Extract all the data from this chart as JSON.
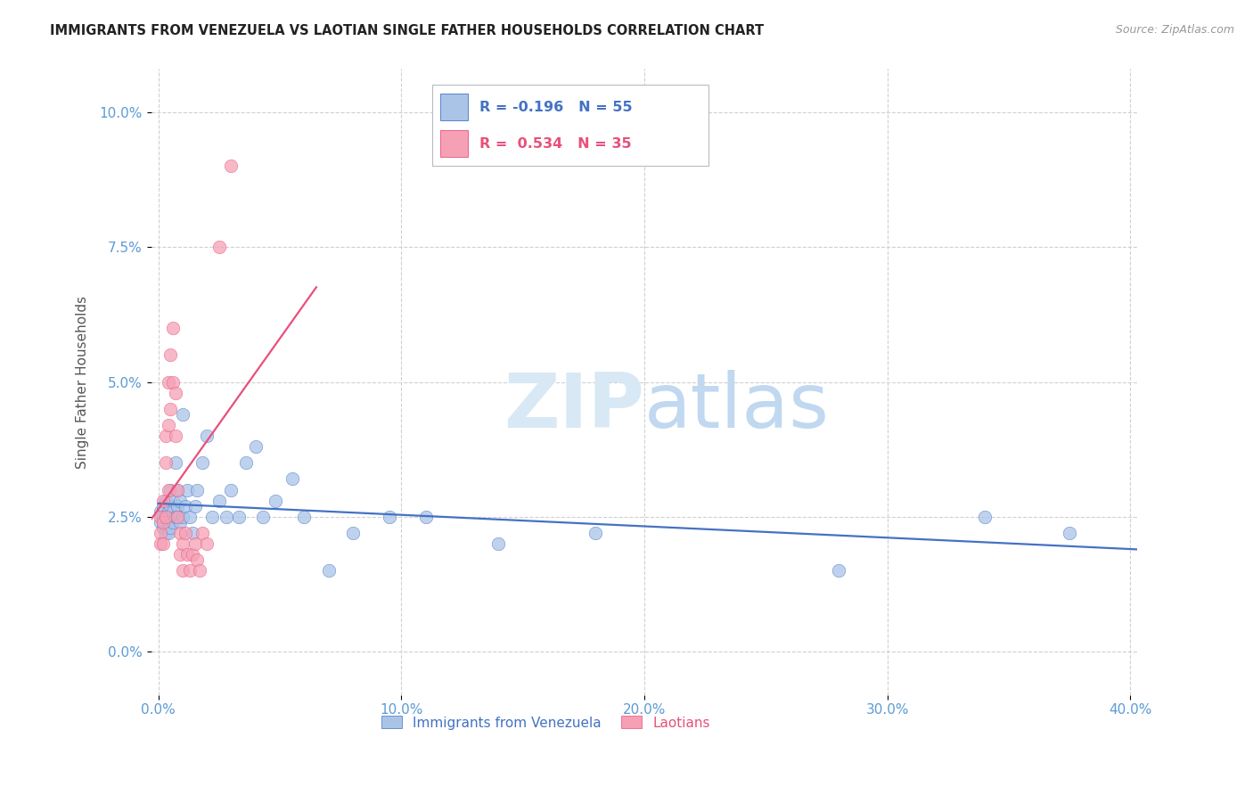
{
  "title": "IMMIGRANTS FROM VENEZUELA VS LAOTIAN SINGLE FATHER HOUSEHOLDS CORRELATION CHART",
  "source": "Source: ZipAtlas.com",
  "xlabel_vals": [
    0.0,
    0.1,
    0.2,
    0.3,
    0.4
  ],
  "ylabel_vals": [
    0.0,
    0.025,
    0.05,
    0.075,
    0.1
  ],
  "xlim": [
    -0.003,
    0.403
  ],
  "ylim": [
    -0.008,
    0.108
  ],
  "blue_R": -0.196,
  "blue_N": 55,
  "pink_R": 0.534,
  "pink_N": 35,
  "blue_color": "#aac4e8",
  "pink_color": "#f5a0b5",
  "blue_line_color": "#4472c4",
  "pink_line_color": "#e8507a",
  "legend_blue_text_color": "#4472c4",
  "legend_pink_text_color": "#e8507a",
  "title_color": "#222222",
  "source_color": "#999999",
  "axis_label_color": "#555555",
  "tick_label_color": "#5b9bd5",
  "watermark_zip_color": "#d8e8f5",
  "watermark_atlas_color": "#c0d8f0",
  "ylabel": "Single Father Households",
  "blue_scatter_x": [
    0.001,
    0.001,
    0.002,
    0.002,
    0.002,
    0.003,
    0.003,
    0.003,
    0.004,
    0.004,
    0.004,
    0.005,
    0.005,
    0.005,
    0.005,
    0.006,
    0.006,
    0.006,
    0.007,
    0.007,
    0.008,
    0.008,
    0.008,
    0.009,
    0.009,
    0.01,
    0.01,
    0.011,
    0.012,
    0.013,
    0.014,
    0.015,
    0.016,
    0.018,
    0.02,
    0.022,
    0.025,
    0.028,
    0.03,
    0.033,
    0.036,
    0.04,
    0.043,
    0.048,
    0.055,
    0.06,
    0.07,
    0.08,
    0.095,
    0.11,
    0.14,
    0.18,
    0.28,
    0.34,
    0.375
  ],
  "blue_scatter_y": [
    0.026,
    0.024,
    0.027,
    0.025,
    0.023,
    0.028,
    0.025,
    0.022,
    0.026,
    0.024,
    0.022,
    0.03,
    0.027,
    0.025,
    0.023,
    0.028,
    0.026,
    0.024,
    0.035,
    0.025,
    0.03,
    0.027,
    0.025,
    0.028,
    0.024,
    0.044,
    0.025,
    0.027,
    0.03,
    0.025,
    0.022,
    0.027,
    0.03,
    0.035,
    0.04,
    0.025,
    0.028,
    0.025,
    0.03,
    0.025,
    0.035,
    0.038,
    0.025,
    0.028,
    0.032,
    0.025,
    0.015,
    0.022,
    0.025,
    0.025,
    0.02,
    0.022,
    0.015,
    0.025,
    0.022
  ],
  "pink_scatter_x": [
    0.001,
    0.001,
    0.001,
    0.002,
    0.002,
    0.002,
    0.003,
    0.003,
    0.003,
    0.004,
    0.004,
    0.004,
    0.005,
    0.005,
    0.006,
    0.006,
    0.007,
    0.007,
    0.008,
    0.008,
    0.009,
    0.009,
    0.01,
    0.01,
    0.011,
    0.012,
    0.013,
    0.014,
    0.015,
    0.016,
    0.017,
    0.018,
    0.02,
    0.025,
    0.03
  ],
  "pink_scatter_y": [
    0.025,
    0.022,
    0.02,
    0.028,
    0.024,
    0.02,
    0.04,
    0.035,
    0.025,
    0.05,
    0.042,
    0.03,
    0.055,
    0.045,
    0.06,
    0.05,
    0.048,
    0.04,
    0.03,
    0.025,
    0.022,
    0.018,
    0.02,
    0.015,
    0.022,
    0.018,
    0.015,
    0.018,
    0.02,
    0.017,
    0.015,
    0.022,
    0.02,
    0.075,
    0.09
  ],
  "pink_line_xrange": [
    -0.01,
    0.065
  ],
  "blue_line_xrange": [
    0.0,
    0.403
  ]
}
